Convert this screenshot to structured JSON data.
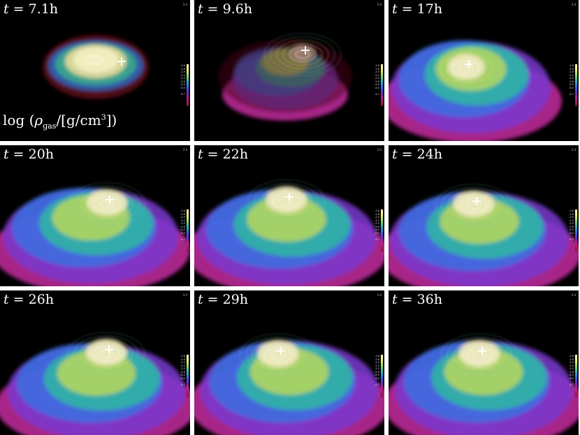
{
  "figure": {
    "legend": {
      "prefix": "log",
      "symbol": "ρ",
      "subscript": "gas",
      "unit_open": "/[g/cm",
      "exponent": "3",
      "unit_close": "]"
    },
    "colorbar": {
      "top_value": "3.4",
      "tick_labels": [
        "-3.8",
        "-4.6",
        "-4.9",
        "-5.2",
        "-5.5",
        "-5.8",
        "-6.0",
        "-6.0",
        "",
        "-6.7"
      ],
      "colors": [
        "#fff8c0",
        "#f3f070",
        "#9be05a",
        "#31c6a8",
        "#2a7dff",
        "#6630c8",
        "#c21c8c",
        "#8a1630"
      ]
    },
    "panels": [
      {
        "t_symbol": "t",
        "eq": " = ",
        "time": "7.1h",
        "stage": 0
      },
      {
        "t_symbol": "t",
        "eq": " = ",
        "time": "9.6h",
        "stage": 1
      },
      {
        "t_symbol": "t",
        "eq": " = ",
        "time": "17h",
        "stage": 2
      },
      {
        "t_symbol": "t",
        "eq": " = ",
        "time": "20h",
        "stage": 3
      },
      {
        "t_symbol": "t",
        "eq": " = ",
        "time": "22h",
        "stage": 4
      },
      {
        "t_symbol": "t",
        "eq": " = ",
        "time": "24h",
        "stage": 5
      },
      {
        "t_symbol": "t",
        "eq": " = ",
        "time": "26h",
        "stage": 6
      },
      {
        "t_symbol": "t",
        "eq": " = ",
        "time": "29h",
        "stage": 7
      },
      {
        "t_symbol": "t",
        "eq": " = ",
        "time": "36h",
        "stage": 8
      }
    ]
  }
}
